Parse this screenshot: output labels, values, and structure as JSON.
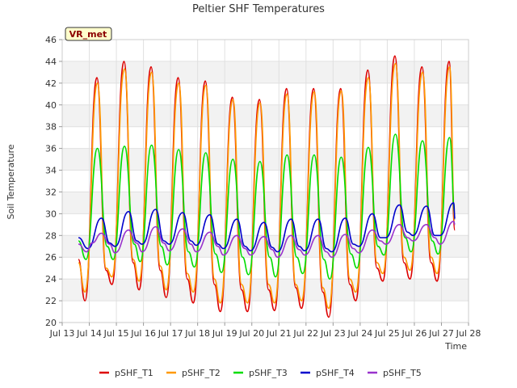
{
  "chart_data": {
    "type": "line",
    "title": "Peltier SHF Temperatures",
    "xlabel": "Time",
    "ylabel": "Soil Temperature",
    "badge": "VR_met",
    "ylim": [
      20,
      46
    ],
    "yticks": [
      20,
      22,
      24,
      26,
      28,
      30,
      32,
      34,
      36,
      38,
      40,
      42,
      44,
      46
    ],
    "xlim": [
      "Jul 13",
      "Jul 28"
    ],
    "xticks": [
      "Jul 13",
      "Jul 14",
      "Jul 15",
      "Jul 16",
      "Jul 17",
      "Jul 18",
      "Jul 19",
      "Jul 20",
      "Jul 21",
      "Jul 22",
      "Jul 23",
      "Jul 24",
      "Jul 25",
      "Jul 26",
      "Jul 27",
      "Jul 28"
    ],
    "grid": true,
    "legend_position": "bottom",
    "x_values_note": "x values are days in July",
    "series": [
      {
        "name": "pSHF_T1",
        "color": "#dd0000",
        "points": [
          [
            13.6,
            25.8
          ],
          [
            13.84,
            22.0
          ],
          [
            14.28,
            42.5
          ],
          [
            14.62,
            24.8
          ],
          [
            14.84,
            23.5
          ],
          [
            15.28,
            44.0
          ],
          [
            15.62,
            25.5
          ],
          [
            15.84,
            23.0
          ],
          [
            16.28,
            43.5
          ],
          [
            16.62,
            24.8
          ],
          [
            16.84,
            22.3
          ],
          [
            17.28,
            42.5
          ],
          [
            17.62,
            24.0
          ],
          [
            17.84,
            21.8
          ],
          [
            18.28,
            42.2
          ],
          [
            18.62,
            23.5
          ],
          [
            18.84,
            21.0
          ],
          [
            19.28,
            40.7
          ],
          [
            19.62,
            23.0
          ],
          [
            19.84,
            21.0
          ],
          [
            20.28,
            40.5
          ],
          [
            20.62,
            23.0
          ],
          [
            20.84,
            21.1
          ],
          [
            21.28,
            41.5
          ],
          [
            21.62,
            23.2
          ],
          [
            21.84,
            21.3
          ],
          [
            22.28,
            41.5
          ],
          [
            22.62,
            22.8
          ],
          [
            22.84,
            20.5
          ],
          [
            23.28,
            41.5
          ],
          [
            23.62,
            23.5
          ],
          [
            23.84,
            22.0
          ],
          [
            24.28,
            43.2
          ],
          [
            24.62,
            25.0
          ],
          [
            24.84,
            23.8
          ],
          [
            25.28,
            44.5
          ],
          [
            25.62,
            25.5
          ],
          [
            25.84,
            24.0
          ],
          [
            26.28,
            43.5
          ],
          [
            26.62,
            25.5
          ],
          [
            26.84,
            23.8
          ],
          [
            27.28,
            44.0
          ],
          [
            27.5,
            28.5
          ]
        ]
      },
      {
        "name": "pSHF_T2",
        "color": "#ff9900",
        "points": [
          [
            13.6,
            25.5
          ],
          [
            13.84,
            22.8
          ],
          [
            14.3,
            42.0
          ],
          [
            14.62,
            25.0
          ],
          [
            14.84,
            24.2
          ],
          [
            15.3,
            43.3
          ],
          [
            15.62,
            25.8
          ],
          [
            15.84,
            23.8
          ],
          [
            16.3,
            43.0
          ],
          [
            16.62,
            25.2
          ],
          [
            16.84,
            23.0
          ],
          [
            17.3,
            42.0
          ],
          [
            17.62,
            24.5
          ],
          [
            17.84,
            22.8
          ],
          [
            18.3,
            41.8
          ],
          [
            18.62,
            24.0
          ],
          [
            18.84,
            21.8
          ],
          [
            19.3,
            40.5
          ],
          [
            19.62,
            23.5
          ],
          [
            19.84,
            21.8
          ],
          [
            20.3,
            40.2
          ],
          [
            20.62,
            23.5
          ],
          [
            20.84,
            21.8
          ],
          [
            21.3,
            41.0
          ],
          [
            21.62,
            23.5
          ],
          [
            21.84,
            22.0
          ],
          [
            22.3,
            41.2
          ],
          [
            22.62,
            23.2
          ],
          [
            22.84,
            21.3
          ],
          [
            23.3,
            41.3
          ],
          [
            23.62,
            24.0
          ],
          [
            23.84,
            22.8
          ],
          [
            24.3,
            42.5
          ],
          [
            24.62,
            25.5
          ],
          [
            24.84,
            24.5
          ],
          [
            25.3,
            43.8
          ],
          [
            25.62,
            26.0
          ],
          [
            25.84,
            24.8
          ],
          [
            26.3,
            43.0
          ],
          [
            26.62,
            26.0
          ],
          [
            26.84,
            24.5
          ],
          [
            27.3,
            43.5
          ],
          [
            27.5,
            29.0
          ]
        ]
      },
      {
        "name": "pSHF_T3",
        "color": "#00dd00",
        "points": [
          [
            13.6,
            27.5
          ],
          [
            13.88,
            25.8
          ],
          [
            14.3,
            36.0
          ],
          [
            14.66,
            27.0
          ],
          [
            14.88,
            25.8
          ],
          [
            15.3,
            36.2
          ],
          [
            15.66,
            27.2
          ],
          [
            15.88,
            25.6
          ],
          [
            16.3,
            36.3
          ],
          [
            16.66,
            27.0
          ],
          [
            16.88,
            25.3
          ],
          [
            17.3,
            35.9
          ],
          [
            17.66,
            26.5
          ],
          [
            17.88,
            25.1
          ],
          [
            18.3,
            35.6
          ],
          [
            18.66,
            26.3
          ],
          [
            18.88,
            24.6
          ],
          [
            19.3,
            35.0
          ],
          [
            19.66,
            26.0
          ],
          [
            19.88,
            24.4
          ],
          [
            20.3,
            34.8
          ],
          [
            20.66,
            26.0
          ],
          [
            20.88,
            24.2
          ],
          [
            21.3,
            35.4
          ],
          [
            21.66,
            26.0
          ],
          [
            21.88,
            24.5
          ],
          [
            22.3,
            35.4
          ],
          [
            22.66,
            25.8
          ],
          [
            22.88,
            24.0
          ],
          [
            23.3,
            35.2
          ],
          [
            23.66,
            26.3
          ],
          [
            23.88,
            25.0
          ],
          [
            24.3,
            36.1
          ],
          [
            24.66,
            27.0
          ],
          [
            24.88,
            26.2
          ],
          [
            25.3,
            37.3
          ],
          [
            25.66,
            27.8
          ],
          [
            25.88,
            26.5
          ],
          [
            26.3,
            36.7
          ],
          [
            26.66,
            27.5
          ],
          [
            26.88,
            26.3
          ],
          [
            27.3,
            37.0
          ],
          [
            27.5,
            30.0
          ]
        ]
      },
      {
        "name": "pSHF_T4",
        "color": "#0000cc",
        "points": [
          [
            13.6,
            27.8
          ],
          [
            13.95,
            26.8
          ],
          [
            14.45,
            29.6
          ],
          [
            14.75,
            27.3
          ],
          [
            14.95,
            27.0
          ],
          [
            15.45,
            30.2
          ],
          [
            15.75,
            27.5
          ],
          [
            15.95,
            27.2
          ],
          [
            16.45,
            30.4
          ],
          [
            16.75,
            27.5
          ],
          [
            16.95,
            27.2
          ],
          [
            17.45,
            30.1
          ],
          [
            17.75,
            27.5
          ],
          [
            17.95,
            27.1
          ],
          [
            18.45,
            29.9
          ],
          [
            18.75,
            27.2
          ],
          [
            18.95,
            26.8
          ],
          [
            19.45,
            29.5
          ],
          [
            19.75,
            27.0
          ],
          [
            19.95,
            26.6
          ],
          [
            20.45,
            29.2
          ],
          [
            20.75,
            26.9
          ],
          [
            20.95,
            26.5
          ],
          [
            21.45,
            29.5
          ],
          [
            21.75,
            27.0
          ],
          [
            21.95,
            26.6
          ],
          [
            22.45,
            29.5
          ],
          [
            22.75,
            26.8
          ],
          [
            22.95,
            26.5
          ],
          [
            23.45,
            29.6
          ],
          [
            23.75,
            27.2
          ],
          [
            23.95,
            27.0
          ],
          [
            24.45,
            30.0
          ],
          [
            24.75,
            27.8
          ],
          [
            24.95,
            27.8
          ],
          [
            25.45,
            30.8
          ],
          [
            25.75,
            28.3
          ],
          [
            25.95,
            28.0
          ],
          [
            26.45,
            30.7
          ],
          [
            26.75,
            28.0
          ],
          [
            26.95,
            28.0
          ],
          [
            27.45,
            31.0
          ],
          [
            27.5,
            29.5
          ]
        ]
      },
      {
        "name": "pSHF_T5",
        "color": "#9933cc",
        "points": [
          [
            13.6,
            27.2
          ],
          [
            13.9,
            26.5
          ],
          [
            14.1,
            27.3
          ],
          [
            14.45,
            28.2
          ],
          [
            14.75,
            27.2
          ],
          [
            14.95,
            26.4
          ],
          [
            15.45,
            28.5
          ],
          [
            15.75,
            27.3
          ],
          [
            15.95,
            26.5
          ],
          [
            16.45,
            28.8
          ],
          [
            16.75,
            27.3
          ],
          [
            16.95,
            26.6
          ],
          [
            17.45,
            28.6
          ],
          [
            17.75,
            27.2
          ],
          [
            17.95,
            26.5
          ],
          [
            18.45,
            28.3
          ],
          [
            18.75,
            27.0
          ],
          [
            18.95,
            26.2
          ],
          [
            19.45,
            28.0
          ],
          [
            19.75,
            26.8
          ],
          [
            19.95,
            26.2
          ],
          [
            20.45,
            27.9
          ],
          [
            20.75,
            26.7
          ],
          [
            20.95,
            26.0
          ],
          [
            21.45,
            28.0
          ],
          [
            21.75,
            26.7
          ],
          [
            21.95,
            26.2
          ],
          [
            22.45,
            28.0
          ],
          [
            22.75,
            26.5
          ],
          [
            22.95,
            26.0
          ],
          [
            23.45,
            28.1
          ],
          [
            23.75,
            26.8
          ],
          [
            23.95,
            26.4
          ],
          [
            24.45,
            28.5
          ],
          [
            24.75,
            27.5
          ],
          [
            24.95,
            27.2
          ],
          [
            25.45,
            29.0
          ],
          [
            25.75,
            27.8
          ],
          [
            25.95,
            27.5
          ],
          [
            26.45,
            29.0
          ],
          [
            26.75,
            27.8
          ],
          [
            26.95,
            27.2
          ],
          [
            27.45,
            29.3
          ],
          [
            27.5,
            29.0
          ]
        ]
      }
    ]
  }
}
